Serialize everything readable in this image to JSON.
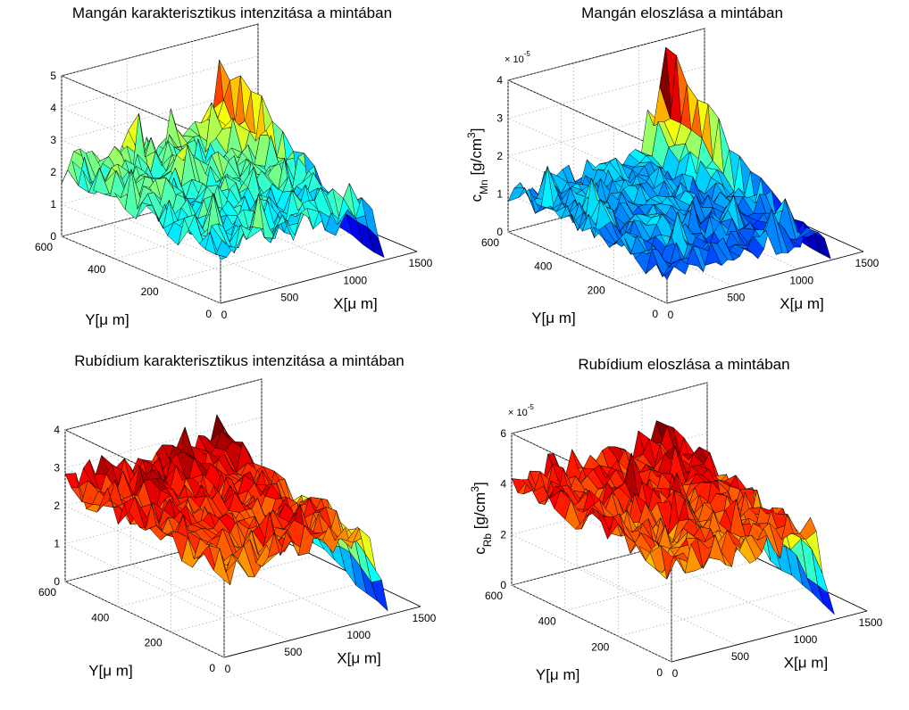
{
  "chart_data": [
    {
      "type": "surface",
      "title": "Mangán karakterisztikus intenzitása a mintában",
      "xlabel": "X[μ m]",
      "ylabel": "Y[μ m]",
      "zlabel": "",
      "exponent": "",
      "xlim": [
        0,
        1500
      ],
      "ylim": [
        0,
        600
      ],
      "zlim": [
        0,
        5
      ],
      "xticks": [
        "0",
        "500",
        "1000",
        "1500"
      ],
      "yticks": [
        "0",
        "200",
        "400",
        "600"
      ],
      "zticks": [
        "0",
        "1",
        "2",
        "3",
        "4",
        "5"
      ],
      "grid": true,
      "colormap": "jet",
      "clim": [
        0.2,
        4.2
      ],
      "surface": {
        "nx": 28,
        "ny": 16,
        "xmax": 1250,
        "base": 1.8,
        "amp": 0.55,
        "peak": 1.4,
        "drop_at": 1150,
        "seed": 3
      }
    },
    {
      "type": "surface",
      "title": "Mangán eloszlása a mintában",
      "xlabel": "X[μ m]",
      "ylabel": "Y[μ m]",
      "zlabel_main": "c",
      "zlabel_sub": "Mn",
      "zlabel_tail": " [g/cm",
      "zlabel_sup": "3",
      "zlabel_end": "]",
      "exponent_prefix": "× 10",
      "exponent": "-5",
      "xlim": [
        0,
        1500
      ],
      "ylim": [
        0,
        600
      ],
      "zlim": [
        0,
        4
      ],
      "xticks": [
        "0",
        "500",
        "1000",
        "1500"
      ],
      "yticks": [
        "0",
        "200",
        "400",
        "600"
      ],
      "zticks": [
        "0",
        "1",
        "2",
        "3",
        "4"
      ],
      "grid": true,
      "colormap": "jet",
      "clim": [
        0.2,
        3.0
      ],
      "surface": {
        "nx": 28,
        "ny": 16,
        "xmax": 1250,
        "base": 0.9,
        "amp": 0.35,
        "peak": 1.6,
        "drop_at": 1150,
        "seed": 7
      }
    },
    {
      "type": "surface",
      "title": "Rubídium karakterisztikus intenzitása a mintában",
      "xlabel": "X[μ m]",
      "ylabel": "Y[μ m]",
      "zlabel": "",
      "exponent": "",
      "xlim": [
        0,
        1500
      ],
      "ylim": [
        0,
        600
      ],
      "zlim": [
        0,
        4
      ],
      "xticks": [
        "0",
        "500",
        "1000",
        "1500"
      ],
      "yticks": [
        "0",
        "200",
        "400",
        "600"
      ],
      "zticks": [
        "0",
        "1",
        "2",
        "3",
        "4"
      ],
      "grid": true,
      "colormap": "jet",
      "clim": [
        0.0,
        3.0
      ],
      "surface": {
        "nx": 28,
        "ny": 16,
        "xmax": 1250,
        "base": 2.4,
        "amp": 0.45,
        "peak": 0.4,
        "drop_at": 1100,
        "seed": 11
      }
    },
    {
      "type": "surface",
      "title": "Rubídium eloszlása a mintában",
      "xlabel": "X[μ m]",
      "ylabel": "Y[μ m]",
      "zlabel_main": "c",
      "zlabel_sub": "Rb",
      "zlabel_tail": " [g/cm",
      "zlabel_sup": "3",
      "zlabel_end": "]",
      "exponent_prefix": "× 10",
      "exponent": "-5",
      "xlim": [
        0,
        1500
      ],
      "ylim": [
        0,
        600
      ],
      "zlim": [
        0,
        6
      ],
      "xticks": [
        "0",
        "500",
        "1000",
        "1500"
      ],
      "yticks": [
        "0",
        "200",
        "400",
        "600"
      ],
      "zticks": [
        "0",
        "2",
        "4",
        "6"
      ],
      "grid": true,
      "colormap": "jet",
      "clim": [
        0.0,
        4.8
      ],
      "surface": {
        "nx": 28,
        "ny": 16,
        "xmax": 1250,
        "base": 3.8,
        "amp": 0.7,
        "peak": 0.6,
        "drop_at": 1100,
        "seed": 19
      }
    }
  ]
}
